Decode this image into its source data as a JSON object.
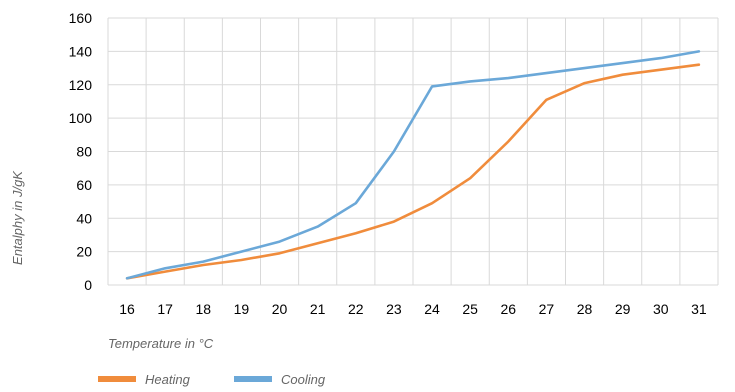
{
  "chart_data": {
    "type": "line",
    "title": "",
    "xlabel": "Temperature in °C",
    "ylabel": "Entalphy in J/gK",
    "categories": [
      "16",
      "17",
      "18",
      "19",
      "20",
      "21",
      "22",
      "23",
      "24",
      "25",
      "26",
      "27",
      "28",
      "29",
      "30",
      "31"
    ],
    "ylim": [
      0,
      160
    ],
    "yticks": [
      0,
      20,
      40,
      60,
      80,
      100,
      120,
      140,
      160
    ],
    "grid": true,
    "legend_position": "bottom-left",
    "series": [
      {
        "name": "Heating",
        "color": "#f08c3c",
        "values": [
          4,
          8,
          12,
          15,
          19,
          25,
          31,
          38,
          49,
          64,
          86,
          111,
          121,
          126,
          129,
          132
        ]
      },
      {
        "name": "Cooling",
        "color": "#6ba8d8",
        "values": [
          4,
          10,
          14,
          20,
          26,
          35,
          49,
          80,
          119,
          122,
          124,
          127,
          130,
          133,
          136,
          140
        ]
      }
    ]
  }
}
